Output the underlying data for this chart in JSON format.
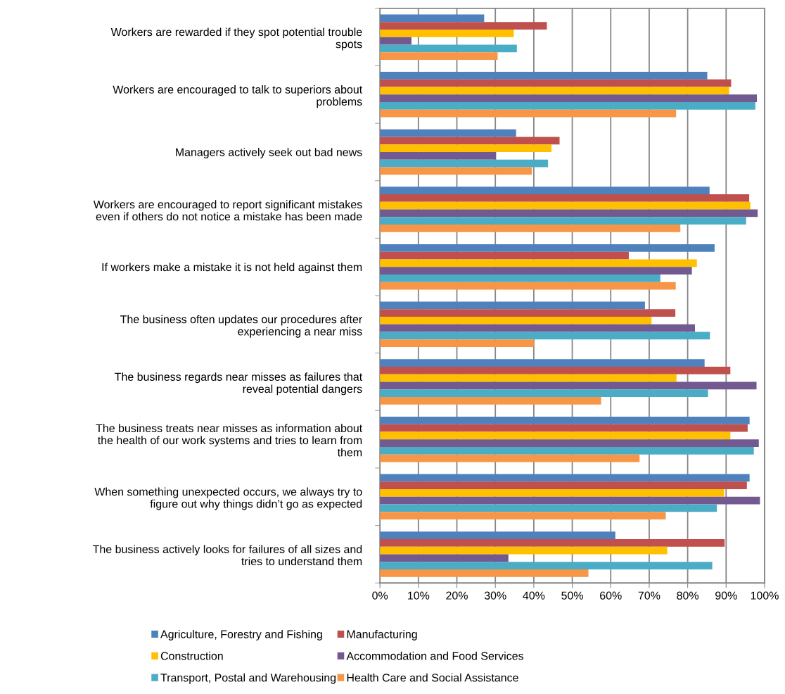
{
  "chart_data": {
    "type": "bar",
    "orientation": "horizontal",
    "categories": [
      "Workers are rewarded if they spot potential trouble\nspots",
      "Workers are encouraged to talk to superiors about\nproblems",
      "Managers actively seek out bad news",
      "Workers are encouraged to report significant mistakes\neven if others do not notice a mistake has been made",
      "If workers make a mistake it is not held against them",
      "The business often updates our procedures after\nexperiencing a near miss",
      "The business regards near misses as failures that\nreveal potential dangers",
      "The business treats near misses as information about\nthe health of our work systems and tries to learn from\nthem",
      "When something unexpected occurs, we always try to\nfigure out why things didn’t go as expected",
      "The business actively looks for failures of all sizes and\ntries to understand them"
    ],
    "series": [
      {
        "name": "Agriculture, Forestry and Fishing",
        "color": "#4f81bd",
        "values": [
          27.1,
          85.1,
          35.4,
          85.7,
          87.0,
          68.9,
          84.4,
          96.1,
          96.1,
          61.2
        ]
      },
      {
        "name": "Manufacturing",
        "color": "#c0504d",
        "values": [
          43.4,
          91.3,
          46.7,
          96.0,
          64.7,
          76.8,
          91.1,
          95.6,
          95.4,
          89.6
        ]
      },
      {
        "name": "Construction",
        "color": "#ffc000",
        "values": [
          34.8,
          90.8,
          44.6,
          96.3,
          82.4,
          70.6,
          77.1,
          91.1,
          89.5,
          74.7
        ]
      },
      {
        "name": "Accommodation and Food Services",
        "color": "#725990",
        "values": [
          8.2,
          98.0,
          30.2,
          98.2,
          81.1,
          81.9,
          97.9,
          98.5,
          98.8,
          33.4
        ]
      },
      {
        "name": "Transport, Postal and Warehousing",
        "color": "#4bacc6",
        "values": [
          35.6,
          97.6,
          43.7,
          95.2,
          72.9,
          85.8,
          85.3,
          97.2,
          87.6,
          86.4
        ]
      },
      {
        "name": "Health Care and Social Assistance",
        "color": "#f79646",
        "values": [
          30.6,
          77.0,
          39.5,
          78.1,
          76.9,
          40.0,
          57.5,
          67.5,
          74.3,
          54.2
        ]
      }
    ],
    "xlim": [
      0,
      100
    ],
    "xticks": [
      {
        "value": 0,
        "label": "0%"
      },
      {
        "value": 10,
        "label": "10%"
      },
      {
        "value": 20,
        "label": "20%"
      },
      {
        "value": 30,
        "label": "30%"
      },
      {
        "value": 40,
        "label": "40%"
      },
      {
        "value": 50,
        "label": "50%"
      },
      {
        "value": 60,
        "label": "60%"
      },
      {
        "value": 70,
        "label": "70%"
      },
      {
        "value": 80,
        "label": "80%"
      },
      {
        "value": 90,
        "label": "90%"
      },
      {
        "value": 100,
        "label": "100%"
      }
    ],
    "grid": "x",
    "legend": "bottom"
  }
}
